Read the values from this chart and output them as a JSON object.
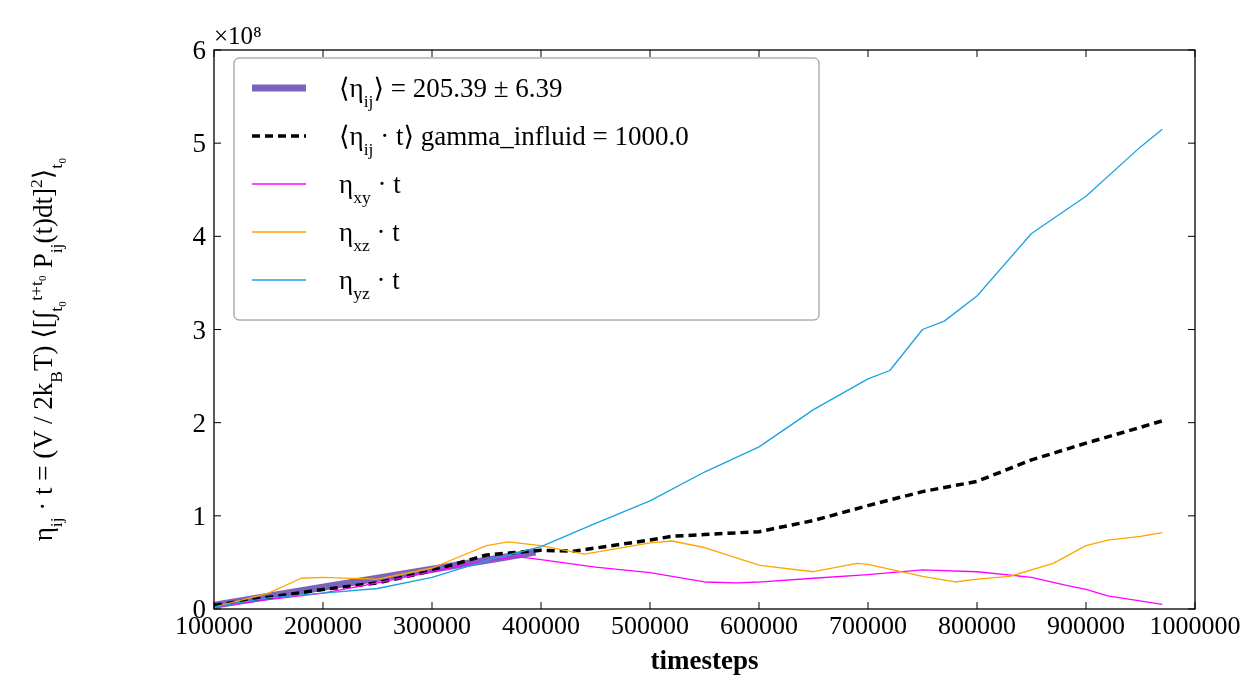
{
  "chart_data": {
    "type": "line",
    "xlabel": "timesteps",
    "ylabel": "η$_{ij}$ · t = (V / 2k$_{B}$T) ⟨[∫$_{t₀}$$^{t+t₀}$ P$_{ij}$(t)dt]$^{2}$⟩$_{t₀}$",
    "annotations": [
      "×10⁸"
    ],
    "xlim": [
      100000,
      1000000
    ],
    "xticks": [
      100000,
      200000,
      300000,
      400000,
      500000,
      600000,
      700000,
      800000,
      900000,
      1000000
    ],
    "ylim": [
      0,
      6
    ],
    "yticks": [
      0,
      1,
      2,
      3,
      4,
      5,
      6
    ],
    "legend": "top left",
    "series": [
      {
        "name": "⟨η$_{ij}$⟩ = 205.39 ± 6.39",
        "color": "#7e62c0",
        "line_style": "solid",
        "x": [
          100000,
          395000
        ],
        "values": [
          0.04,
          0.61
        ]
      },
      {
        "name": "⟨η$_{ij}$ · t⟩   gamma_influid = 1000.0",
        "color": "#000000",
        "line_style": "dashed",
        "x": [
          100000,
          200000,
          250000,
          300000,
          350000,
          400000,
          430000,
          500000,
          520000,
          550000,
          600000,
          650000,
          700000,
          750000,
          800000,
          850000,
          900000,
          950000,
          970000
        ],
        "values": [
          0.04,
          0.21,
          0.28,
          0.41,
          0.58,
          0.63,
          0.62,
          0.74,
          0.78,
          0.8,
          0.83,
          0.95,
          1.11,
          1.26,
          1.37,
          1.6,
          1.78,
          1.95,
          2.02
        ]
      },
      {
        "name": "η$_{xy}$ · t",
        "color": "#ff00ff",
        "line_style": "solid",
        "x": [
          100000,
          150000,
          200000,
          250000,
          300000,
          350000,
          380000,
          400000,
          450000,
          500000,
          550000,
          580000,
          600000,
          650000,
          700000,
          750000,
          800000,
          850000,
          880000,
          900000,
          920000,
          970000
        ],
        "values": [
          0.02,
          0.1,
          0.17,
          0.28,
          0.4,
          0.52,
          0.56,
          0.53,
          0.45,
          0.39,
          0.29,
          0.28,
          0.29,
          0.33,
          0.37,
          0.42,
          0.4,
          0.34,
          0.26,
          0.21,
          0.14,
          0.05
        ]
      },
      {
        "name": "η$_{xz}$ · t",
        "color": "#ffa500",
        "line_style": "solid",
        "x": [
          100000,
          150000,
          180000,
          200000,
          250000,
          300000,
          350000,
          370000,
          400000,
          440000,
          500000,
          520000,
          550000,
          600000,
          650000,
          690000,
          700000,
          750000,
          780000,
          800000,
          830000,
          870000,
          900000,
          920000,
          950000,
          970000
        ],
        "values": [
          0.02,
          0.17,
          0.33,
          0.34,
          0.32,
          0.44,
          0.68,
          0.72,
          0.68,
          0.59,
          0.71,
          0.73,
          0.66,
          0.47,
          0.4,
          0.49,
          0.48,
          0.35,
          0.29,
          0.32,
          0.35,
          0.49,
          0.68,
          0.74,
          0.78,
          0.82
        ]
      },
      {
        "name": "η$_{yz}$ · t",
        "color": "#1ba1e2",
        "line_style": "solid",
        "x": [
          100000,
          150000,
          200000,
          250000,
          300000,
          350000,
          400000,
          450000,
          500000,
          550000,
          600000,
          650000,
          700000,
          720000,
          750000,
          770000,
          800000,
          850000,
          900000,
          950000,
          970000
        ],
        "values": [
          0.02,
          0.12,
          0.17,
          0.22,
          0.34,
          0.52,
          0.67,
          0.92,
          1.16,
          1.47,
          1.74,
          2.14,
          2.47,
          2.56,
          3.0,
          3.09,
          3.36,
          4.03,
          4.43,
          4.96,
          5.15
        ]
      }
    ]
  }
}
